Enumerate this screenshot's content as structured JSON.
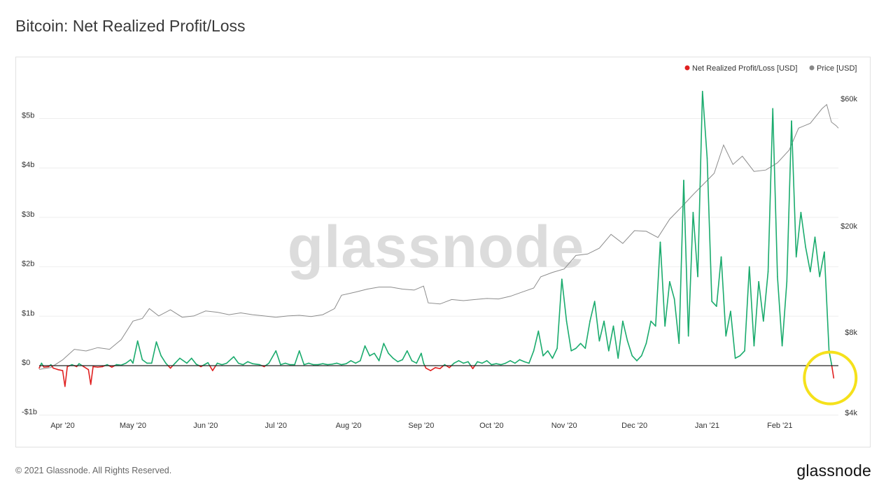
{
  "page": {
    "title": "Bitcoin: Net Realized Profit/Loss",
    "footer": "© 2021 Glassnode. All Rights Reserved.",
    "brand": "glassnode",
    "watermark": "glassnode"
  },
  "chart_data": {
    "type": "line",
    "legend": [
      {
        "label": "Net Realized Profit/Loss [USD]",
        "color": "#e02020"
      },
      {
        "label": "Price [USD]",
        "color": "#888888"
      }
    ],
    "x_ticks": [
      "Apr '20",
      "May '20",
      "Jun '20",
      "Jul '20",
      "Aug '20",
      "Sep '20",
      "Oct '20",
      "Nov '20",
      "Dec '20",
      "Jan '21",
      "Feb '21"
    ],
    "y_left_ticks": [
      {
        "label": "$5b",
        "value": 5
      },
      {
        "label": "$4b",
        "value": 4
      },
      {
        "label": "$3b",
        "value": 3
      },
      {
        "label": "$2b",
        "value": 2
      },
      {
        "label": "$1b",
        "value": 1
      },
      {
        "label": "$0",
        "value": 0
      },
      {
        "label": "-$1b",
        "value": -1
      }
    ],
    "y_right_ticks": [
      {
        "label": "$60k",
        "value": 60000
      },
      {
        "label": "$20k",
        "value": 20000
      },
      {
        "label": "$8k",
        "value": 8000
      },
      {
        "label": "$4k",
        "value": 4000
      }
    ],
    "y_left_range": [
      -1,
      5.6
    ],
    "y_right_scale": "log",
    "positive_color": "#1aab6d",
    "negative_color": "#e02020",
    "price_color": "#8c8c8c",
    "highlight_color": "#f5e11b",
    "x_start": "2020-03-22",
    "x_end": "2021-02-26",
    "net_pl_series": [
      [
        "2020-03-22",
        -0.05
      ],
      [
        "2020-03-23",
        0.05
      ],
      [
        "2020-03-24",
        -0.03
      ],
      [
        "2020-03-26",
        -0.02
      ],
      [
        "2020-03-27",
        0.02
      ],
      [
        "2020-03-28",
        -0.05
      ],
      [
        "2020-03-30",
        -0.08
      ],
      [
        "2020-04-01",
        -0.1
      ],
      [
        "2020-04-02",
        -0.42
      ],
      [
        "2020-04-03",
        -0.02
      ],
      [
        "2020-04-05",
        0.02
      ],
      [
        "2020-04-07",
        -0.02
      ],
      [
        "2020-04-08",
        0.04
      ],
      [
        "2020-04-10",
        -0.02
      ],
      [
        "2020-04-12",
        -0.08
      ],
      [
        "2020-04-13",
        -0.38
      ],
      [
        "2020-04-14",
        -0.02
      ],
      [
        "2020-04-16",
        -0.03
      ],
      [
        "2020-04-18",
        -0.02
      ],
      [
        "2020-04-20",
        0.02
      ],
      [
        "2020-04-22",
        -0.03
      ],
      [
        "2020-04-24",
        0.02
      ],
      [
        "2020-04-26",
        0.01
      ],
      [
        "2020-04-28",
        0.05
      ],
      [
        "2020-04-30",
        0.12
      ],
      [
        "2020-05-01",
        0.05
      ],
      [
        "2020-05-03",
        0.5
      ],
      [
        "2020-05-05",
        0.12
      ],
      [
        "2020-05-07",
        0.05
      ],
      [
        "2020-05-09",
        0.05
      ],
      [
        "2020-05-11",
        0.48
      ],
      [
        "2020-05-13",
        0.2
      ],
      [
        "2020-05-15",
        0.05
      ],
      [
        "2020-05-17",
        -0.05
      ],
      [
        "2020-05-19",
        0.05
      ],
      [
        "2020-05-21",
        0.15
      ],
      [
        "2020-05-24",
        0.05
      ],
      [
        "2020-05-26",
        0.15
      ],
      [
        "2020-05-28",
        0.03
      ],
      [
        "2020-05-30",
        -0.02
      ],
      [
        "2020-06-02",
        0.06
      ],
      [
        "2020-06-04",
        -0.1
      ],
      [
        "2020-06-06",
        0.05
      ],
      [
        "2020-06-08",
        0.02
      ],
      [
        "2020-06-10",
        0.05
      ],
      [
        "2020-06-13",
        0.18
      ],
      [
        "2020-06-15",
        0.05
      ],
      [
        "2020-06-17",
        0.02
      ],
      [
        "2020-06-19",
        0.08
      ],
      [
        "2020-06-21",
        0.04
      ],
      [
        "2020-06-24",
        0.02
      ],
      [
        "2020-06-26",
        -0.02
      ],
      [
        "2020-06-28",
        0.05
      ],
      [
        "2020-07-01",
        0.3
      ],
      [
        "2020-07-03",
        0.02
      ],
      [
        "2020-07-05",
        0.05
      ],
      [
        "2020-07-07",
        0.02
      ],
      [
        "2020-07-09",
        0.02
      ],
      [
        "2020-07-11",
        0.3
      ],
      [
        "2020-07-13",
        0.02
      ],
      [
        "2020-07-15",
        0.05
      ],
      [
        "2020-07-17",
        0.02
      ],
      [
        "2020-07-19",
        0.02
      ],
      [
        "2020-07-21",
        0.04
      ],
      [
        "2020-07-23",
        0.02
      ],
      [
        "2020-07-25",
        0.03
      ],
      [
        "2020-07-27",
        0.05
      ],
      [
        "2020-07-29",
        0.02
      ],
      [
        "2020-07-31",
        0.04
      ],
      [
        "2020-08-02",
        0.1
      ],
      [
        "2020-08-04",
        0.05
      ],
      [
        "2020-08-06",
        0.1
      ],
      [
        "2020-08-08",
        0.4
      ],
      [
        "2020-08-10",
        0.2
      ],
      [
        "2020-08-12",
        0.25
      ],
      [
        "2020-08-14",
        0.1
      ],
      [
        "2020-08-16",
        0.45
      ],
      [
        "2020-08-18",
        0.25
      ],
      [
        "2020-08-20",
        0.15
      ],
      [
        "2020-08-22",
        0.08
      ],
      [
        "2020-08-24",
        0.12
      ],
      [
        "2020-08-26",
        0.3
      ],
      [
        "2020-08-28",
        0.1
      ],
      [
        "2020-08-30",
        0.05
      ],
      [
        "2020-09-01",
        0.25
      ],
      [
        "2020-09-02",
        0.05
      ],
      [
        "2020-09-03",
        -0.05
      ],
      [
        "2020-09-05",
        -0.1
      ],
      [
        "2020-09-07",
        -0.04
      ],
      [
        "2020-09-09",
        -0.06
      ],
      [
        "2020-09-11",
        0.02
      ],
      [
        "2020-09-13",
        -0.04
      ],
      [
        "2020-09-15",
        0.05
      ],
      [
        "2020-09-17",
        0.1
      ],
      [
        "2020-09-19",
        0.05
      ],
      [
        "2020-09-21",
        0.08
      ],
      [
        "2020-09-23",
        -0.06
      ],
      [
        "2020-09-25",
        0.08
      ],
      [
        "2020-09-27",
        0.05
      ],
      [
        "2020-09-29",
        0.1
      ],
      [
        "2020-10-01",
        0.02
      ],
      [
        "2020-10-03",
        0.04
      ],
      [
        "2020-10-05",
        0.02
      ],
      [
        "2020-10-07",
        0.05
      ],
      [
        "2020-10-09",
        0.1
      ],
      [
        "2020-10-11",
        0.05
      ],
      [
        "2020-10-13",
        0.12
      ],
      [
        "2020-10-15",
        0.08
      ],
      [
        "2020-10-17",
        0.05
      ],
      [
        "2020-10-19",
        0.3
      ],
      [
        "2020-10-21",
        0.7
      ],
      [
        "2020-10-23",
        0.2
      ],
      [
        "2020-10-25",
        0.3
      ],
      [
        "2020-10-27",
        0.15
      ],
      [
        "2020-10-29",
        0.35
      ],
      [
        "2020-10-31",
        1.75
      ],
      [
        "2020-11-02",
        0.9
      ],
      [
        "2020-11-04",
        0.3
      ],
      [
        "2020-11-06",
        0.35
      ],
      [
        "2020-11-08",
        0.45
      ],
      [
        "2020-11-10",
        0.35
      ],
      [
        "2020-11-12",
        0.9
      ],
      [
        "2020-11-14",
        1.3
      ],
      [
        "2020-11-16",
        0.5
      ],
      [
        "2020-11-18",
        0.9
      ],
      [
        "2020-11-20",
        0.3
      ],
      [
        "2020-11-22",
        0.8
      ],
      [
        "2020-11-24",
        0.15
      ],
      [
        "2020-11-26",
        0.9
      ],
      [
        "2020-11-28",
        0.5
      ],
      [
        "2020-11-30",
        0.2
      ],
      [
        "2020-12-02",
        0.1
      ],
      [
        "2020-12-04",
        0.2
      ],
      [
        "2020-12-06",
        0.45
      ],
      [
        "2020-12-08",
        0.9
      ],
      [
        "2020-12-10",
        0.8
      ],
      [
        "2020-12-12",
        2.5
      ],
      [
        "2020-12-14",
        0.8
      ],
      [
        "2020-12-16",
        1.7
      ],
      [
        "2020-12-18",
        1.35
      ],
      [
        "2020-12-20",
        0.45
      ],
      [
        "2020-12-22",
        3.75
      ],
      [
        "2020-12-24",
        0.6
      ],
      [
        "2020-12-26",
        3.1
      ],
      [
        "2020-12-28",
        1.8
      ],
      [
        "2020-12-30",
        5.55
      ],
      [
        "2021-01-01",
        4.2
      ],
      [
        "2021-01-03",
        1.3
      ],
      [
        "2021-01-05",
        1.2
      ],
      [
        "2021-01-07",
        2.2
      ],
      [
        "2021-01-09",
        0.6
      ],
      [
        "2021-01-11",
        1.1
      ],
      [
        "2021-01-13",
        0.15
      ],
      [
        "2021-01-15",
        0.2
      ],
      [
        "2021-01-17",
        0.3
      ],
      [
        "2021-01-19",
        2.0
      ],
      [
        "2021-01-21",
        0.4
      ],
      [
        "2021-01-23",
        1.7
      ],
      [
        "2021-01-25",
        0.9
      ],
      [
        "2021-01-27",
        1.9
      ],
      [
        "2021-01-29",
        5.2
      ],
      [
        "2021-01-31",
        1.8
      ],
      [
        "2021-02-02",
        0.4
      ],
      [
        "2021-02-04",
        1.7
      ],
      [
        "2021-02-06",
        4.95
      ],
      [
        "2021-02-08",
        2.2
      ],
      [
        "2021-02-10",
        3.1
      ],
      [
        "2021-02-12",
        2.4
      ],
      [
        "2021-02-14",
        1.9
      ],
      [
        "2021-02-16",
        2.6
      ],
      [
        "2021-02-18",
        1.8
      ],
      [
        "2021-02-20",
        2.3
      ],
      [
        "2021-02-22",
        0.3
      ],
      [
        "2021-02-23",
        0.05
      ],
      [
        "2021-02-24",
        -0.25
      ]
    ],
    "price_series": [
      [
        "2020-03-22",
        5800
      ],
      [
        "2020-03-27",
        5900
      ],
      [
        "2020-04-01",
        6300
      ],
      [
        "2020-04-06",
        6900
      ],
      [
        "2020-04-11",
        6800
      ],
      [
        "2020-04-16",
        7000
      ],
      [
        "2020-04-21",
        6900
      ],
      [
        "2020-04-26",
        7500
      ],
      [
        "2020-05-01",
        8800
      ],
      [
        "2020-05-05",
        9000
      ],
      [
        "2020-05-08",
        9800
      ],
      [
        "2020-05-12",
        9200
      ],
      [
        "2020-05-17",
        9700
      ],
      [
        "2020-05-22",
        9100
      ],
      [
        "2020-05-27",
        9200
      ],
      [
        "2020-06-01",
        9600
      ],
      [
        "2020-06-06",
        9500
      ],
      [
        "2020-06-11",
        9300
      ],
      [
        "2020-06-16",
        9450
      ],
      [
        "2020-06-21",
        9300
      ],
      [
        "2020-06-26",
        9200
      ],
      [
        "2020-07-01",
        9100
      ],
      [
        "2020-07-06",
        9200
      ],
      [
        "2020-07-11",
        9250
      ],
      [
        "2020-07-16",
        9150
      ],
      [
        "2020-07-21",
        9300
      ],
      [
        "2020-07-26",
        9800
      ],
      [
        "2020-07-29",
        11000
      ],
      [
        "2020-08-04",
        11300
      ],
      [
        "2020-08-09",
        11600
      ],
      [
        "2020-08-14",
        11800
      ],
      [
        "2020-08-19",
        11800
      ],
      [
        "2020-08-24",
        11600
      ],
      [
        "2020-08-29",
        11500
      ],
      [
        "2020-09-02",
        11900
      ],
      [
        "2020-09-04",
        10300
      ],
      [
        "2020-09-09",
        10200
      ],
      [
        "2020-09-14",
        10600
      ],
      [
        "2020-09-19",
        10500
      ],
      [
        "2020-09-24",
        10600
      ],
      [
        "2020-09-29",
        10700
      ],
      [
        "2020-10-04",
        10650
      ],
      [
        "2020-10-09",
        10900
      ],
      [
        "2020-10-14",
        11300
      ],
      [
        "2020-10-19",
        11700
      ],
      [
        "2020-10-22",
        12900
      ],
      [
        "2020-10-27",
        13400
      ],
      [
        "2020-11-01",
        13800
      ],
      [
        "2020-11-06",
        15500
      ],
      [
        "2020-11-11",
        15700
      ],
      [
        "2020-11-16",
        16500
      ],
      [
        "2020-11-21",
        18600
      ],
      [
        "2020-11-26",
        17200
      ],
      [
        "2020-12-01",
        19200
      ],
      [
        "2020-12-06",
        19100
      ],
      [
        "2020-12-11",
        18100
      ],
      [
        "2020-12-16",
        21200
      ],
      [
        "2020-12-21",
        23500
      ],
      [
        "2020-12-26",
        26200
      ],
      [
        "2020-12-31",
        29000
      ],
      [
        "2021-01-04",
        31500
      ],
      [
        "2021-01-08",
        40200
      ],
      [
        "2021-01-12",
        34000
      ],
      [
        "2021-01-16",
        36500
      ],
      [
        "2021-01-21",
        32000
      ],
      [
        "2021-01-26",
        32400
      ],
      [
        "2021-01-31",
        34500
      ],
      [
        "2021-02-05",
        38500
      ],
      [
        "2021-02-09",
        46500
      ],
      [
        "2021-02-14",
        48500
      ],
      [
        "2021-02-19",
        55000
      ],
      [
        "2021-02-21",
        57000
      ],
      [
        "2021-02-23",
        49000
      ],
      [
        "2021-02-25",
        47500
      ],
      [
        "2021-02-26",
        46500
      ]
    ]
  }
}
